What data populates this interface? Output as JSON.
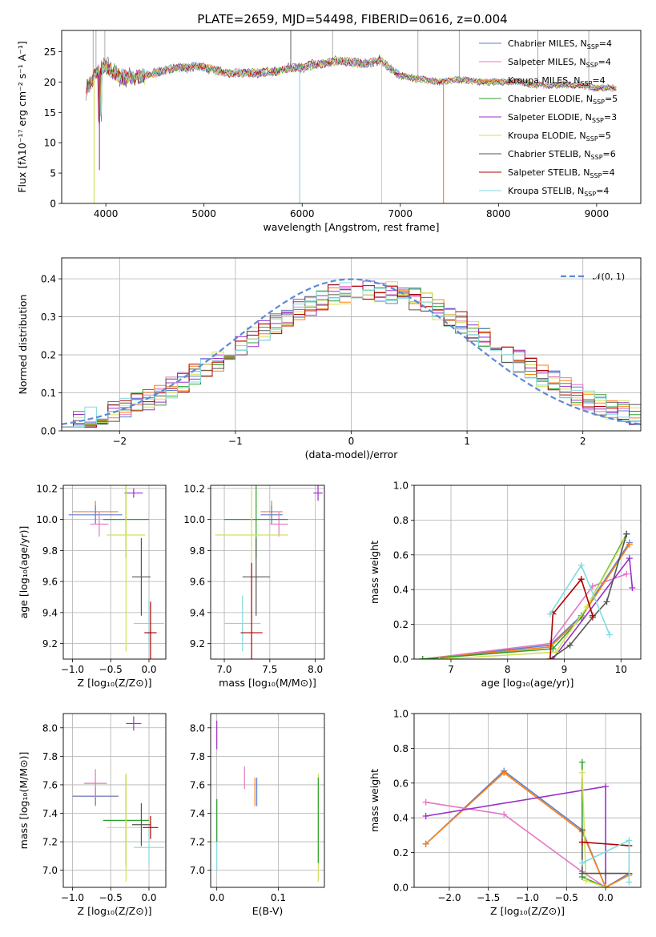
{
  "figure": {
    "title": "PLATE=2659, MJD=54498, FIBERID=0616, z=0.004"
  },
  "legend_spectrum": [
    {
      "label": "Chabrier MILES, N",
      "sub": "SSP",
      "tail": "=4",
      "color": "#5b7fd6"
    },
    {
      "label": "Salpeter MILES, N",
      "sub": "SSP",
      "tail": "=4",
      "color": "#e377c2"
    },
    {
      "label": "Kroupa MILES, N",
      "sub": "SSP",
      "tail": "=4",
      "color": "#ff7f0e"
    },
    {
      "label": "Chabrier ELODIE, N",
      "sub": "SSP",
      "tail": "=5",
      "color": "#2ca02c"
    },
    {
      "label": "Salpeter ELODIE, N",
      "sub": "SSP",
      "tail": "=3",
      "color": "#9b30c8"
    },
    {
      "label": "Kroupa ELODIE, N",
      "sub": "SSP",
      "tail": "=5",
      "color": "#d4e157"
    },
    {
      "label": "Chabrier STELIB, N",
      "sub": "SSP",
      "tail": "=6",
      "color": "#555555"
    },
    {
      "label": "Salpeter STELIB, N",
      "sub": "SSP",
      "tail": "=4",
      "color": "#b00000"
    },
    {
      "label": "Kroupa STELIB, N",
      "sub": "SSP",
      "tail": "=4",
      "color": "#80dbe0"
    }
  ],
  "legend_hist": {
    "label": "𝒩(0, 1)",
    "color": "#5b8ad6"
  },
  "chart_data": [
    {
      "id": "spectrum",
      "type": "line",
      "xlabel": "wavelength [Angstrom, rest frame]",
      "ylabel": "Flux [fλ10⁻¹⁷ erg cm⁻² s⁻¹ A⁻¹]",
      "xlim": [
        3550,
        9450
      ],
      "ylim": [
        0,
        28.5
      ],
      "xticks": [
        4000,
        5000,
        6000,
        7000,
        8000,
        9000
      ],
      "yticks": [
        0,
        5,
        10,
        15,
        20,
        25
      ],
      "x": [
        3800,
        3900,
        4000,
        4200,
        4400,
        4600,
        4800,
        5000,
        5200,
        5400,
        5600,
        5800,
        6000,
        6200,
        6400,
        6600,
        6800,
        7000,
        7200,
        7400,
        7600,
        7800,
        8000,
        8200,
        8400,
        8600,
        8800,
        9000,
        9200
      ],
      "y": [
        18.5,
        21.5,
        22.5,
        20.5,
        21.0,
        22.0,
        22.5,
        22.5,
        21.5,
        21.5,
        21.5,
        22.0,
        22.5,
        23.0,
        23.5,
        23.0,
        23.5,
        21.0,
        20.5,
        20.0,
        20.5,
        20.0,
        20.0,
        20.0,
        19.5,
        19.5,
        19.5,
        19.0,
        19.0
      ],
      "dips": [
        {
          "x": 3880,
          "y": 0.0,
          "color": "#d4e157"
        },
        {
          "x": 3935,
          "y": 5.5,
          "color": "#9b30c8"
        },
        {
          "x": 5975,
          "y": 0.0,
          "color": "#80dbe0"
        },
        {
          "x": 6810,
          "y": 0.0,
          "color": "#d4e157"
        },
        {
          "x": 7440,
          "y": 0.0,
          "color": "#ff7f0e"
        }
      ]
    },
    {
      "id": "residuals",
      "type": "line",
      "xlabel": "(data-model)/error",
      "ylabel": "Normed distribution",
      "xlim": [
        -2.5,
        2.5
      ],
      "ylim": [
        0,
        0.455
      ],
      "xticks": [
        -2,
        -1,
        0,
        1,
        2
      ],
      "yticks": [
        0.0,
        0.1,
        0.2,
        0.3,
        0.4
      ],
      "curve": "normal(0,1)"
    },
    {
      "id": "age-vs-Z",
      "type": "scatter",
      "xlabel": "Z [log₁₀(Z/Z⊙)]",
      "ylabel": "age  [log₁₀(age/yr)]",
      "xlim": [
        -1.12,
        0.22
      ],
      "ylim": [
        9.1,
        10.22
      ],
      "xticks": [
        -1.0,
        -0.5,
        0.0
      ],
      "yticks": [
        9.2,
        9.4,
        9.6,
        9.8,
        10.0,
        10.2
      ],
      "points": [
        {
          "x": -0.7,
          "y": 10.05,
          "xerr": 0.3,
          "yerr": 0.07,
          "color": "#ff7f0e"
        },
        {
          "x": -0.7,
          "y": 10.03,
          "xerr": 0.35,
          "yerr": 0.06,
          "color": "#5b7fd6"
        },
        {
          "x": -0.65,
          "y": 9.97,
          "xerr": 0.12,
          "yerr": 0.08,
          "color": "#e377c2"
        },
        {
          "x": -0.2,
          "y": 10.17,
          "xerr": 0.12,
          "yerr": 0.03,
          "color": "#9b30c8"
        },
        {
          "x": -0.3,
          "y": 10.0,
          "xerr": 0.3,
          "yerr": 0.25,
          "color": "#2ca02c"
        },
        {
          "x": -0.3,
          "y": 9.9,
          "xerr": 0.25,
          "yerr": 0.75,
          "color": "#d4e157"
        },
        {
          "x": -0.1,
          "y": 9.63,
          "xerr": 0.12,
          "yerr": 0.25,
          "color": "#555555"
        },
        {
          "x": 0.0,
          "y": 9.33,
          "xerr": 0.2,
          "yerr": 0.15,
          "color": "#80dbe0"
        },
        {
          "x": 0.02,
          "y": 9.27,
          "xerr": 0.08,
          "yerr": 0.2,
          "color": "#b00000"
        }
      ]
    },
    {
      "id": "age-vs-mass",
      "type": "scatter",
      "xlabel": "mass [log₁₀(M/M⊙)]",
      "ylabel": "",
      "xlim": [
        6.85,
        8.1
      ],
      "ylim": [
        9.1,
        10.22
      ],
      "xticks": [
        7.0,
        7.5,
        8.0
      ],
      "yticks": [
        9.2,
        9.4,
        9.6,
        9.8,
        10.0,
        10.2
      ],
      "points": [
        {
          "x": 7.52,
          "y": 10.05,
          "xerr": 0.12,
          "yerr": 0.07,
          "color": "#ff7f0e"
        },
        {
          "x": 7.52,
          "y": 10.03,
          "xerr": 0.12,
          "yerr": 0.06,
          "color": "#5b7fd6"
        },
        {
          "x": 7.6,
          "y": 9.97,
          "xerr": 0.1,
          "yerr": 0.08,
          "color": "#e377c2"
        },
        {
          "x": 8.03,
          "y": 10.17,
          "xerr": 0.05,
          "yerr": 0.05,
          "color": "#9b30c8"
        },
        {
          "x": 7.35,
          "y": 10.0,
          "xerr": 0.35,
          "yerr": 0.25,
          "color": "#2ca02c"
        },
        {
          "x": 7.3,
          "y": 9.9,
          "xerr": 0.4,
          "yerr": 0.4,
          "color": "#d4e157"
        },
        {
          "x": 7.35,
          "y": 9.63,
          "xerr": 0.15,
          "yerr": 0.25,
          "color": "#555555"
        },
        {
          "x": 7.2,
          "y": 9.33,
          "xerr": 0.2,
          "yerr": 0.18,
          "color": "#80dbe0"
        },
        {
          "x": 7.3,
          "y": 9.27,
          "xerr": 0.12,
          "yerr": 0.45,
          "color": "#b00000"
        }
      ]
    },
    {
      "id": "weight-vs-age",
      "type": "line",
      "xlabel": "age  [log₁₀(age/yr)]",
      "ylabel": "mass weight",
      "xlim": [
        6.35,
        10.35
      ],
      "ylim": [
        0,
        1.0
      ],
      "xticks": [
        7,
        8,
        9,
        10
      ],
      "yticks": [
        0.0,
        0.2,
        0.4,
        0.6,
        0.8,
        1.0
      ],
      "series": [
        {
          "color": "#5b7fd6",
          "x": [
            6.5,
            8.75,
            9.3,
            10.15
          ],
          "y": [
            0.0,
            0.08,
            0.25,
            0.67
          ]
        },
        {
          "color": "#e377c2",
          "x": [
            6.5,
            8.75,
            9.5,
            10.1
          ],
          "y": [
            0.0,
            0.09,
            0.42,
            0.49
          ]
        },
        {
          "color": "#ff7f0e",
          "x": [
            6.5,
            8.75,
            9.3,
            10.15
          ],
          "y": [
            0.0,
            0.07,
            0.24,
            0.66
          ]
        },
        {
          "color": "#2ca02c",
          "x": [
            6.5,
            8.8,
            9.3,
            10.1
          ],
          "y": [
            0.0,
            0.06,
            0.24,
            0.72
          ]
        },
        {
          "color": "#9b30c8",
          "x": [
            8.8,
            10.15,
            10.2
          ],
          "y": [
            0.0,
            0.58,
            0.41
          ]
        },
        {
          "color": "#d4e157",
          "x": [
            6.8,
            8.85,
            9.4,
            10.05
          ],
          "y": [
            0.0,
            0.04,
            0.3,
            0.68
          ]
        },
        {
          "color": "#555555",
          "x": [
            8.75,
            9.1,
            9.5,
            9.75,
            10.1
          ],
          "y": [
            0.0,
            0.08,
            0.24,
            0.33,
            0.72
          ]
        },
        {
          "color": "#b00000",
          "x": [
            8.75,
            8.8,
            9.3,
            9.5
          ],
          "y": [
            0.0,
            0.26,
            0.46,
            0.25
          ]
        },
        {
          "color": "#80dbe0",
          "x": [
            8.75,
            9.3,
            9.8
          ],
          "y": [
            0.26,
            0.54,
            0.14
          ]
        }
      ]
    },
    {
      "id": "mass-vs-Z",
      "type": "scatter",
      "xlabel": "Z [log₁₀(Z/Z⊙)]",
      "ylabel": "mass [log₁₀(M/M⊙)]",
      "xlim": [
        -1.12,
        0.22
      ],
      "ylim": [
        6.88,
        8.1
      ],
      "xticks": [
        -1.0,
        -0.5,
        0.0
      ],
      "yticks": [
        7.0,
        7.2,
        7.4,
        7.6,
        7.8,
        8.0
      ],
      "points": [
        {
          "x": -0.7,
          "y": 7.52,
          "xerr": 0.3,
          "yerr": 0.07,
          "color": "#ff7f0e"
        },
        {
          "x": -0.7,
          "y": 7.52,
          "xerr": 0.3,
          "yerr": 0.06,
          "color": "#5b7fd6"
        },
        {
          "x": -0.7,
          "y": 7.61,
          "xerr": 0.15,
          "yerr": 0.1,
          "color": "#e377c2"
        },
        {
          "x": -0.2,
          "y": 8.03,
          "xerr": 0.1,
          "yerr": 0.05,
          "color": "#9b30c8"
        },
        {
          "x": -0.3,
          "y": 7.35,
          "xerr": 0.3,
          "yerr": 0.32,
          "color": "#2ca02c"
        },
        {
          "x": -0.3,
          "y": 7.3,
          "xerr": 0.25,
          "yerr": 0.38,
          "color": "#d4e157"
        },
        {
          "x": -0.1,
          "y": 7.32,
          "xerr": 0.12,
          "yerr": 0.15,
          "color": "#555555"
        },
        {
          "x": 0.0,
          "y": 7.16,
          "xerr": 0.2,
          "yerr": 0.12,
          "color": "#80dbe0"
        },
        {
          "x": 0.02,
          "y": 7.3,
          "xerr": 0.1,
          "yerr": 0.08,
          "color": "#b00000"
        }
      ]
    },
    {
      "id": "mass-vs-EBV",
      "type": "scatter",
      "xlabel": "E(B-V)",
      "ylabel": "",
      "xlim": [
        -0.01,
        0.175
      ],
      "ylim": [
        6.88,
        8.1
      ],
      "xticks": [
        0.0,
        0.1
      ],
      "yticks": [
        7.0,
        7.2,
        7.4,
        7.6,
        7.8,
        8.0
      ],
      "points": [
        {
          "x": 0.0,
          "y": 7.95,
          "xerr": 0.0,
          "yerr": 0.1,
          "color": "#9b30c8"
        },
        {
          "x": 0.0,
          "y": 7.25,
          "xerr": 0.0,
          "yerr": 0.25,
          "color": "#80dbe0"
        },
        {
          "x": 0.0,
          "y": 7.35,
          "xerr": 0.0,
          "yerr": 0.15,
          "color": "#2ca02c"
        },
        {
          "x": 0.045,
          "y": 7.65,
          "xerr": 0.0,
          "yerr": 0.08,
          "color": "#e377c2"
        },
        {
          "x": 0.062,
          "y": 7.55,
          "xerr": 0.0,
          "yerr": 0.1,
          "color": "#ff7f0e"
        },
        {
          "x": 0.065,
          "y": 7.55,
          "xerr": 0.0,
          "yerr": 0.1,
          "color": "#5b7fd6"
        },
        {
          "x": 0.165,
          "y": 7.3,
          "xerr": 0.0,
          "yerr": 0.38,
          "color": "#d4e157"
        },
        {
          "x": 0.165,
          "y": 7.35,
          "xerr": 0.0,
          "yerr": 0.3,
          "color": "#2ca02c"
        }
      ]
    },
    {
      "id": "weight-vs-Z",
      "type": "line",
      "xlabel": "Z [log₁₀(Z/Z⊙)]",
      "ylabel": "mass weight",
      "xlim": [
        -2.45,
        0.45
      ],
      "ylim": [
        0,
        1.0
      ],
      "xticks": [
        -2.0,
        -1.5,
        -1.0,
        -0.5,
        0.0
      ],
      "yticks": [
        0.0,
        0.2,
        0.4,
        0.6,
        0.8,
        1.0
      ],
      "series": [
        {
          "color": "#5b7fd6",
          "x": [
            -2.3,
            -1.3,
            -0.3,
            0.0,
            0.3
          ],
          "y": [
            0.25,
            0.67,
            0.33,
            0.0,
            0.08
          ]
        },
        {
          "color": "#ff7f0e",
          "x": [
            -2.3,
            -1.3,
            -0.3,
            0.0,
            0.3
          ],
          "y": [
            0.25,
            0.66,
            0.32,
            0.0,
            0.07
          ]
        },
        {
          "color": "#e377c2",
          "x": [
            -2.3,
            -1.3,
            -0.3,
            0.0
          ],
          "y": [
            0.49,
            0.42,
            0.09,
            0.0
          ]
        },
        {
          "color": "#9b30c8",
          "x": [
            -2.3,
            0.0,
            0.0
          ],
          "y": [
            0.41,
            0.58,
            0.0
          ]
        },
        {
          "color": "#2ca02c",
          "x": [
            -0.3,
            -0.3,
            0.0
          ],
          "y": [
            0.72,
            0.06,
            0.0
          ]
        },
        {
          "color": "#d4e157",
          "x": [
            -0.3,
            -0.25,
            0.0
          ],
          "y": [
            0.66,
            0.04,
            0.0
          ]
        },
        {
          "color": "#555555",
          "x": [
            -0.3,
            -0.3,
            0.0,
            0.3
          ],
          "y": [
            0.33,
            0.08,
            0.08,
            0.08
          ]
        },
        {
          "color": "#b00000",
          "x": [
            -0.3,
            0.3
          ],
          "y": [
            0.26,
            0.24
          ]
        },
        {
          "color": "#80dbe0",
          "x": [
            -0.3,
            0.3,
            0.3
          ],
          "y": [
            0.14,
            0.27,
            0.03
          ]
        }
      ]
    }
  ]
}
